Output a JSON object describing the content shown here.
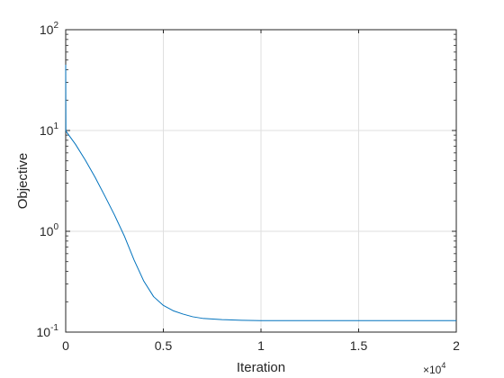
{
  "chart_data": {
    "type": "line",
    "title": "",
    "xlabel": "Iteration",
    "ylabel": "Objective",
    "x_exponent_label": "×10",
    "x_exponent": "4",
    "xlim": [
      0,
      2
    ],
    "ylim": [
      0.1,
      100
    ],
    "yscale": "log",
    "grid": true,
    "x_ticks": [
      0,
      0.5,
      1,
      1.5,
      2
    ],
    "x_tick_labels": [
      "0",
      "0.5",
      "1",
      "1.5",
      "2"
    ],
    "y_ticks": [
      0.1,
      1,
      10,
      100
    ],
    "y_tick_base": "10",
    "y_tick_exponents": [
      "-1",
      "0",
      "1",
      "2"
    ],
    "series": [
      {
        "color": "#0072bd",
        "x": [
          0,
          0.0005,
          0.001,
          0.002,
          0.05,
          0.1,
          0.15,
          0.2,
          0.25,
          0.3,
          0.35,
          0.4,
          0.45,
          0.5,
          0.55,
          0.6,
          0.65,
          0.7,
          0.8,
          0.9,
          1.0,
          1.2,
          1.5,
          1.8,
          2.0
        ],
        "y": [
          45,
          20,
          10,
          9.8,
          7.3,
          5.1,
          3.45,
          2.25,
          1.45,
          0.9,
          0.52,
          0.32,
          0.225,
          0.184,
          0.163,
          0.151,
          0.142,
          0.137,
          0.133,
          0.131,
          0.13,
          0.13,
          0.13,
          0.13,
          0.13
        ]
      }
    ]
  }
}
